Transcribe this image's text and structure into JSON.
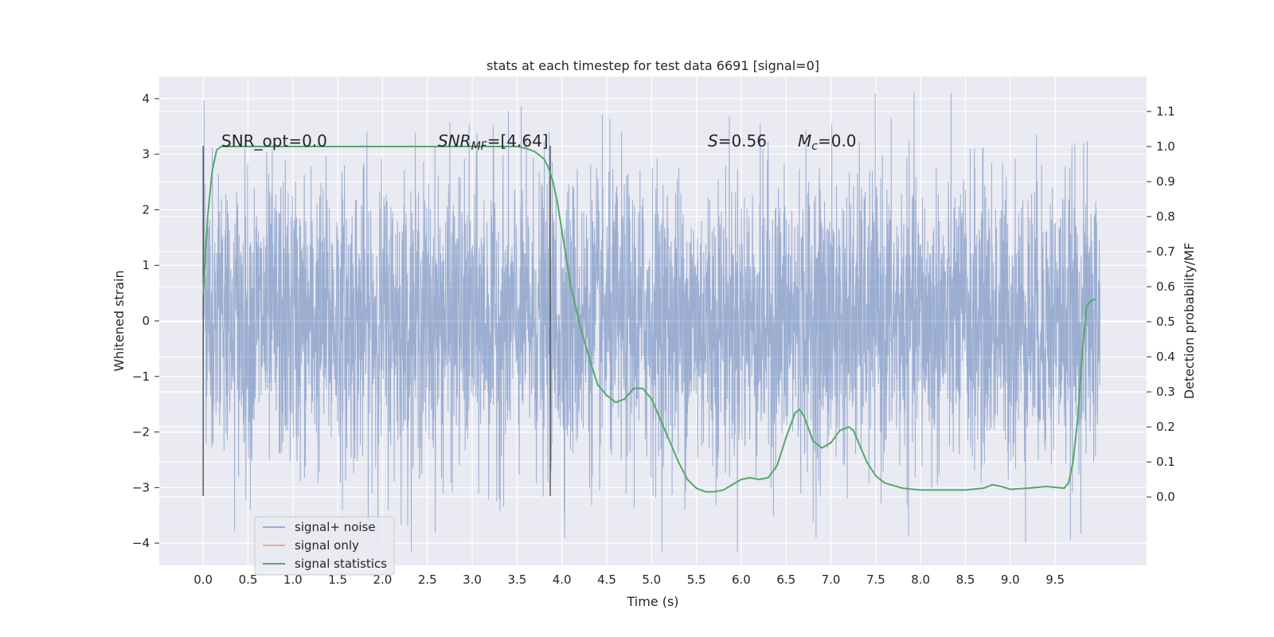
{
  "chart_data": {
    "type": "line",
    "title": "stats at each timestep for test data 6691 [signal=0]",
    "xlabel": "Time (s)",
    "ylabel": "Whitened strain",
    "y2label": "Detection probability/MF",
    "xlim": [
      -0.49,
      10.52
    ],
    "ylim": [
      -4.4,
      4.4
    ],
    "y2lim": [
      -0.195,
      1.2
    ],
    "x_ticks": [
      "0.0",
      "0.5",
      "1.0",
      "1.5",
      "2.0",
      "2.5",
      "3.0",
      "3.5",
      "4.0",
      "4.5",
      "5.0",
      "5.5",
      "6.0",
      "6.5",
      "7.0",
      "7.5",
      "8.0",
      "8.5",
      "9.0",
      "9.5"
    ],
    "y_ticks": [
      "4",
      "3",
      "2",
      "1",
      "0",
      "−1",
      "−2",
      "−3",
      "−4"
    ],
    "y2_ticks": [
      "1.1",
      "1.0",
      "0.9",
      "0.8",
      "0.7",
      "0.6",
      "0.5",
      "0.4",
      "0.3",
      "0.2",
      "0.1",
      "0.0"
    ],
    "grid": true,
    "legend_position": "lower-left",
    "colors": {
      "background": "#eaeaf2",
      "grid": "#ffffff",
      "noise": "#4c72b0",
      "signal": "#dd8452",
      "stats": "#55a868",
      "marker": "#444444"
    },
    "series": [
      {
        "name": "signal+ noise",
        "axis": "left",
        "x_range": [
          0.0,
          10.0
        ],
        "approx_core_amplitude": 1.3,
        "approx_peak_amplitude": 4.0
      },
      {
        "name": "signal only",
        "axis": "left",
        "values": []
      },
      {
        "name": "signal statistics",
        "axis": "right",
        "x": [
          0.0,
          0.05,
          0.1,
          0.15,
          0.2,
          0.3,
          0.5,
          1.0,
          2.0,
          3.0,
          3.5,
          3.6,
          3.7,
          3.8,
          3.85,
          3.9,
          3.95,
          4.0,
          4.1,
          4.2,
          4.3,
          4.4,
          4.5,
          4.6,
          4.7,
          4.8,
          4.9,
          5.0,
          5.1,
          5.2,
          5.3,
          5.4,
          5.5,
          5.6,
          5.7,
          5.8,
          5.9,
          6.0,
          6.1,
          6.2,
          6.3,
          6.4,
          6.5,
          6.6,
          6.65,
          6.7,
          6.8,
          6.9,
          7.0,
          7.1,
          7.2,
          7.25,
          7.3,
          7.4,
          7.5,
          7.6,
          7.8,
          8.0,
          8.2,
          8.5,
          8.7,
          8.8,
          8.9,
          9.0,
          9.2,
          9.4,
          9.6,
          9.65,
          9.7,
          9.75,
          9.8,
          9.85,
          9.9,
          9.95
        ],
        "values": [
          0.58,
          0.8,
          0.93,
          0.99,
          1.0,
          1.0,
          1.0,
          1.0,
          1.0,
          1.0,
          1.0,
          0.995,
          0.985,
          0.965,
          0.94,
          0.9,
          0.84,
          0.76,
          0.6,
          0.49,
          0.4,
          0.32,
          0.29,
          0.27,
          0.28,
          0.31,
          0.31,
          0.28,
          0.22,
          0.16,
          0.1,
          0.05,
          0.025,
          0.015,
          0.015,
          0.02,
          0.035,
          0.05,
          0.055,
          0.05,
          0.055,
          0.09,
          0.17,
          0.24,
          0.25,
          0.23,
          0.16,
          0.14,
          0.155,
          0.19,
          0.2,
          0.19,
          0.16,
          0.1,
          0.06,
          0.04,
          0.025,
          0.02,
          0.02,
          0.02,
          0.025,
          0.035,
          0.03,
          0.022,
          0.025,
          0.03,
          0.025,
          0.04,
          0.1,
          0.22,
          0.4,
          0.545,
          0.56,
          0.565
        ]
      }
    ],
    "vertical_markers": [
      {
        "x": 0.0,
        "y_range": [
          -3.15,
          3.15
        ]
      },
      {
        "x": 3.87,
        "y_range": [
          -3.15,
          3.15
        ]
      }
    ],
    "annotations": [
      {
        "text": "SNR_opt=0.0",
        "x": 0.2,
        "y": 3.15
      },
      {
        "text": "SNR_MF=[4.64]",
        "x": 2.6,
        "y": 3.15
      },
      {
        "text": "S=0.56",
        "x": 5.6,
        "y": 3.15
      },
      {
        "text": "M_c=0.0",
        "x": 6.6,
        "y": 3.15
      }
    ]
  }
}
